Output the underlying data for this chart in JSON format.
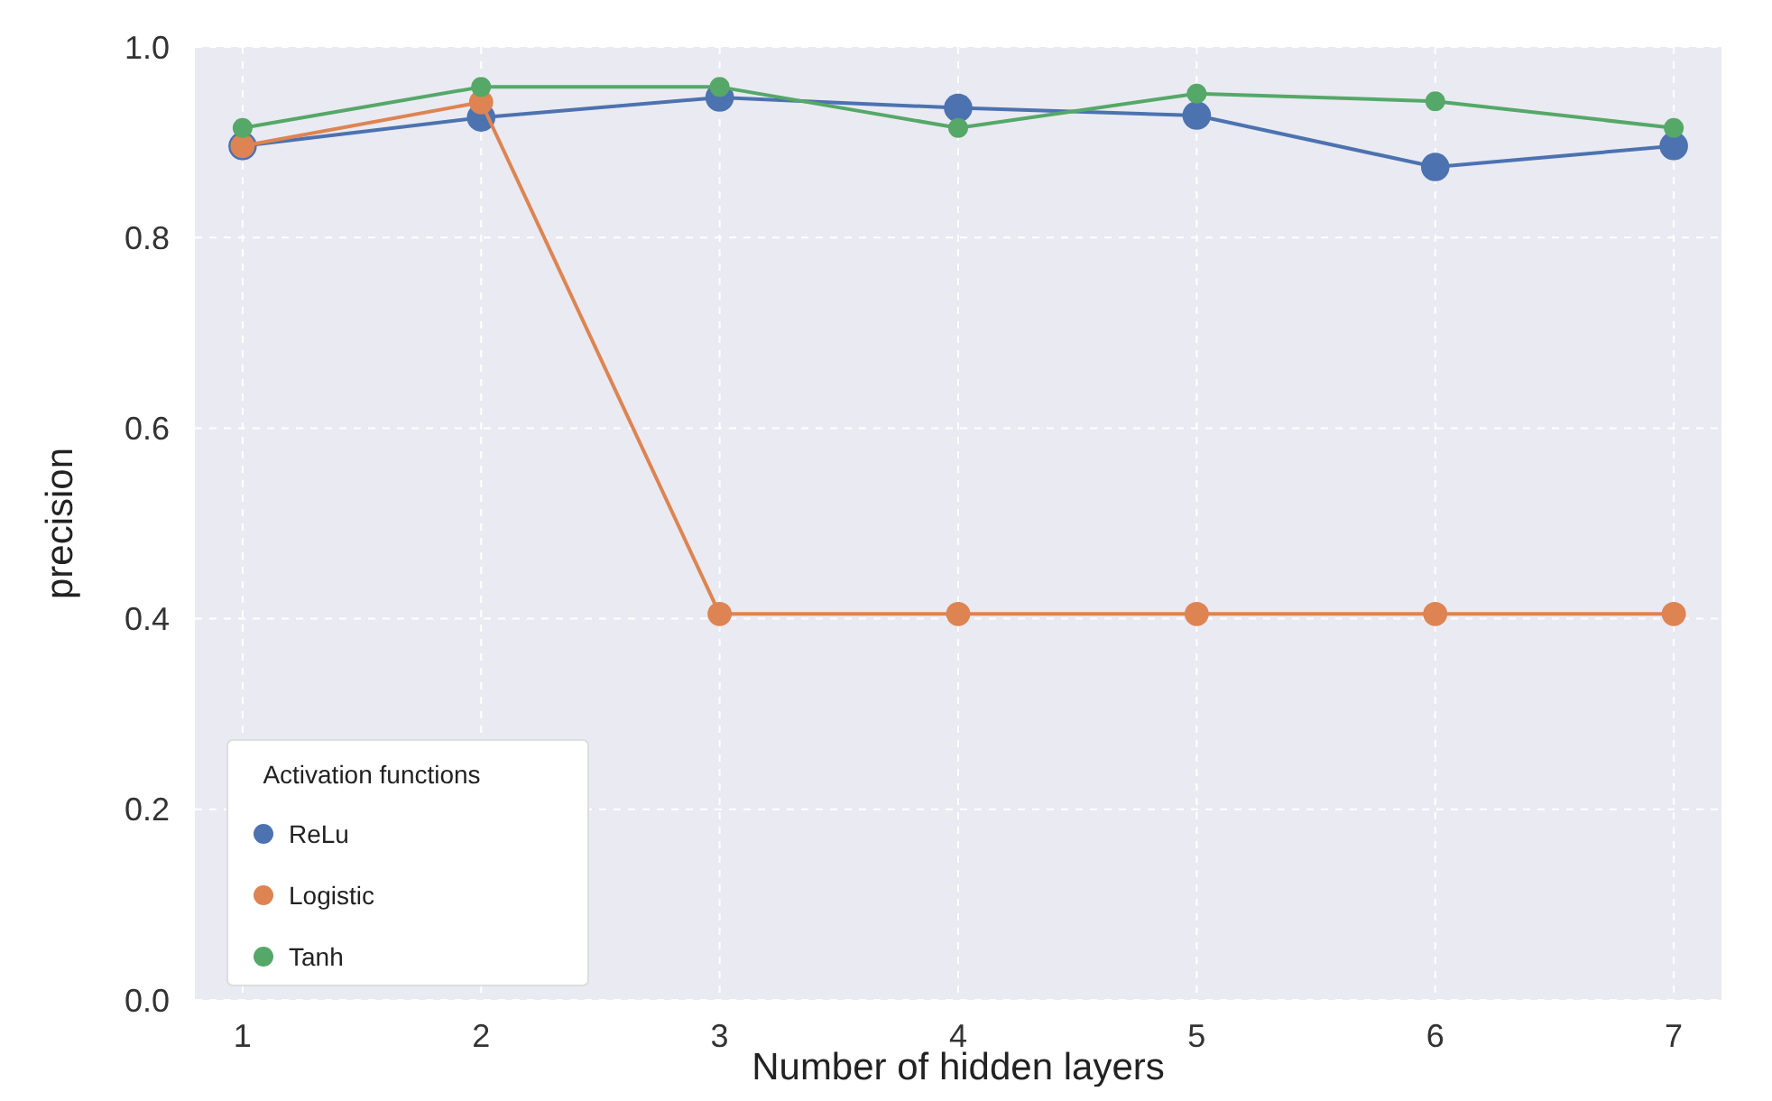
{
  "chart_data": {
    "type": "line",
    "xlabel": "Number of hidden layers",
    "ylabel": "precision",
    "legend_title": "Activation functions",
    "x": [
      1,
      2,
      3,
      4,
      5,
      6,
      7
    ],
    "xlim": [
      0.8,
      7.2
    ],
    "xticks": [
      1,
      2,
      3,
      4,
      5,
      6,
      7
    ],
    "ylim": [
      0,
      1
    ],
    "yticks": [
      {
        "value": 0,
        "label": "0.0"
      },
      0.2,
      0.4,
      0.6,
      0.8,
      {
        "value": 1,
        "label": "1.0"
      }
    ],
    "grid": true,
    "legend": "bottom left",
    "marker": "circle",
    "series": [
      {
        "name": "ReLu",
        "color": "#4c72b0",
        "values": [
          0.896,
          0.926,
          0.947,
          0.936,
          0.928,
          0.874,
          0.896
        ]
      },
      {
        "name": "Logistic",
        "color": "#dd8452",
        "values": [
          0.896,
          0.942,
          0.405,
          0.405,
          0.405,
          0.405,
          0.405
        ]
      },
      {
        "name": "Tanh",
        "color": "#55a868",
        "values": [
          0.915,
          0.958,
          0.958,
          0.915,
          0.951,
          0.943,
          0.915
        ]
      }
    ]
  }
}
